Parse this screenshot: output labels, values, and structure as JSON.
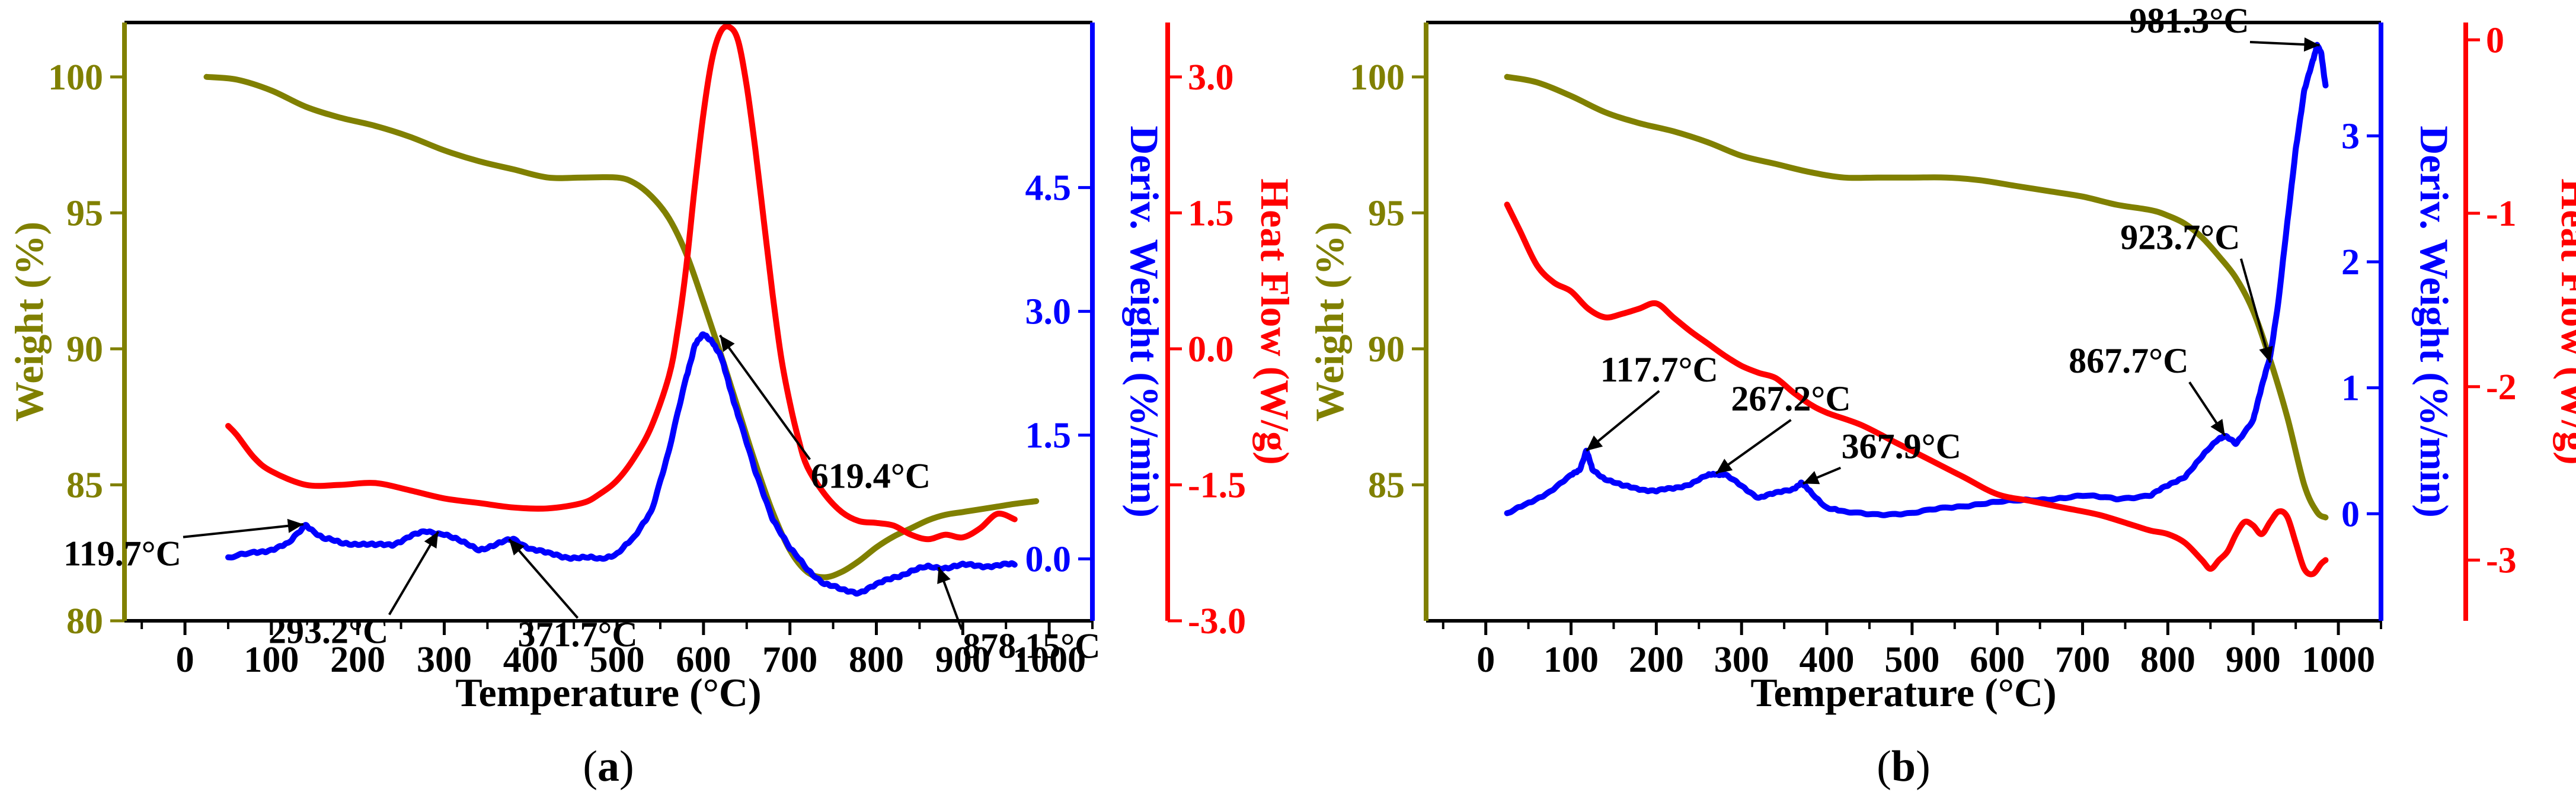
{
  "colors": {
    "weight": "#808000",
    "deriv": "#0000ff",
    "heat": "#ff0000",
    "axis": "#000000"
  },
  "chart_data": [
    {
      "type": "line",
      "caption": {
        "pre": "(",
        "letter": "a",
        "post": ")"
      },
      "xlabel": "Temperature (°C)",
      "xlim": [
        -70,
        1050
      ],
      "xticks": [
        0,
        100,
        200,
        300,
        400,
        500,
        600,
        700,
        800,
        900,
        1000
      ],
      "axes": {
        "weight": {
          "label": "Weight (%)",
          "lim": [
            80,
            102
          ],
          "ticks": [
            80,
            85,
            90,
            95,
            100
          ],
          "tick_labels": [
            "80",
            "85",
            "90",
            "95",
            "100"
          ]
        },
        "deriv": {
          "label": "Deriv. Weight (%/min)",
          "lim": [
            -0.75,
            6.5
          ],
          "ticks": [
            0,
            1.5,
            3,
            4.5
          ],
          "tick_labels": [
            "0.0",
            "1.5",
            "3.0",
            "4.5"
          ]
        },
        "heat": {
          "label": "Heat Flow (W/g)",
          "lim": [
            -3,
            3.6
          ],
          "ticks": [
            -3,
            -1.5,
            0,
            1.5,
            3
          ],
          "tick_labels": [
            "-3.0",
            "-1.5",
            "0.0",
            "1.5",
            "3.0"
          ]
        }
      },
      "series": [
        {
          "name": "Weight",
          "axis": "weight",
          "color": "#808000",
          "x": [
            25,
            60,
            100,
            140,
            180,
            220,
            260,
            300,
            340,
            380,
            420,
            460,
            500,
            520,
            540,
            560,
            580,
            600,
            620,
            640,
            660,
            680,
            700,
            720,
            740,
            760,
            780,
            800,
            820,
            840,
            860,
            880,
            900,
            920,
            940,
            960,
            985
          ],
          "y": [
            100,
            99.9,
            99.5,
            98.9,
            98.5,
            98.2,
            97.8,
            97.3,
            96.9,
            96.6,
            96.3,
            96.3,
            96.3,
            96.1,
            95.6,
            94.8,
            93.5,
            91.7,
            89.8,
            87.8,
            85.8,
            84,
            82.6,
            81.8,
            81.6,
            81.8,
            82.2,
            82.7,
            83.1,
            83.4,
            83.7,
            83.9,
            84,
            84.1,
            84.2,
            84.3,
            84.4
          ]
        },
        {
          "name": "Deriv. Weight",
          "axis": "deriv",
          "color": "#0000ff",
          "noise": 0.025,
          "x": [
            50,
            80,
            100,
            120,
            140,
            160,
            180,
            200,
            220,
            240,
            260,
            280,
            300,
            320,
            340,
            360,
            380,
            400,
            420,
            440,
            460,
            480,
            500,
            520,
            540,
            560,
            580,
            590,
            600,
            610,
            620,
            630,
            640,
            660,
            680,
            700,
            720,
            740,
            760,
            780,
            800,
            820,
            840,
            860,
            880,
            900,
            920,
            940,
            960
          ],
          "y": [
            0.01,
            0.07,
            0.12,
            0.18,
            0.42,
            0.25,
            0.19,
            0.19,
            0.16,
            0.18,
            0.27,
            0.33,
            0.31,
            0.2,
            0.12,
            0.17,
            0.24,
            0.13,
            0.06,
            0.03,
            0.01,
            0,
            0.07,
            0.25,
            0.6,
            1.3,
            2.2,
            2.6,
            2.71,
            2.65,
            2.45,
            2.1,
            1.75,
            1.05,
            0.5,
            0.12,
            -0.12,
            -0.3,
            -0.38,
            -0.4,
            -0.32,
            -0.22,
            -0.15,
            -0.1,
            -0.1,
            -0.08,
            -0.08,
            -0.08,
            -0.07
          ]
        },
        {
          "name": "Heat Flow",
          "axis": "heat",
          "color": "#ff0000",
          "x": [
            50,
            60,
            80,
            100,
            140,
            180,
            220,
            260,
            300,
            340,
            380,
            420,
            460,
            480,
            500,
            520,
            540,
            560,
            570,
            580,
            590,
            600,
            610,
            620,
            630,
            640,
            650,
            660,
            670,
            680,
            690,
            700,
            710,
            720,
            740,
            760,
            780,
            800,
            820,
            840,
            860,
            880,
            900,
            920,
            940,
            960
          ],
          "y": [
            -0.85,
            -0.95,
            -1.2,
            -1.35,
            -1.5,
            -1.5,
            -1.48,
            -1.56,
            -1.65,
            -1.7,
            -1.75,
            -1.76,
            -1.7,
            -1.6,
            -1.45,
            -1.2,
            -0.85,
            -0.3,
            0.2,
            0.9,
            1.8,
            2.6,
            3.2,
            3.5,
            3.55,
            3.4,
            2.9,
            2.2,
            1.4,
            0.6,
            -0.1,
            -0.6,
            -1,
            -1.3,
            -1.6,
            -1.8,
            -1.9,
            -1.92,
            -1.95,
            -2.05,
            -2.1,
            -2.05,
            -2.08,
            -1.98,
            -1.82,
            -1.88
          ]
        }
      ],
      "annotations": [
        {
          "text": "119.7°C",
          "x": 137,
          "axis": "deriv",
          "y": 0.42,
          "dx": -2.7,
          "dy": -0.5
        },
        {
          "text": "293.2°C",
          "x": 293,
          "axis": "deriv",
          "y": 0.33,
          "dx": -1.05,
          "dy": -1.35
        },
        {
          "text": "371.7°C",
          "x": 375,
          "axis": "deriv",
          "y": 0.24,
          "dx": 0.1,
          "dy": -1.3
        },
        {
          "text": "619.4°C",
          "x": 619,
          "axis": "deriv",
          "y": 2.71,
          "dx": 2.0,
          "dy": -1.85
        },
        {
          "text": "878.15°C",
          "x": 872,
          "axis": "deriv",
          "y": -0.1,
          "dx": 0.45,
          "dy": -1.1
        }
      ]
    },
    {
      "type": "line",
      "caption": {
        "pre": "(",
        "letter": "b",
        "post": ")"
      },
      "xlabel": "Temperature (°C)",
      "xlim": [
        -70,
        1050
      ],
      "xticks": [
        0,
        100,
        200,
        300,
        400,
        500,
        600,
        700,
        800,
        900,
        1000
      ],
      "axes": {
        "weight": {
          "label": "Weight (%)",
          "lim": [
            80,
            102
          ],
          "ticks": [
            85,
            90,
            95,
            100
          ],
          "tick_labels": [
            "85",
            "90",
            "95",
            "100"
          ]
        },
        "deriv": {
          "label": "Deriv. Weight (%/min)",
          "lim": [
            -0.85,
            3.9
          ],
          "ticks": [
            0,
            1,
            2,
            3
          ],
          "tick_labels": [
            "0",
            "1",
            "2",
            "3"
          ]
        },
        "heat": {
          "label": "Heat Flow (W/g)",
          "lim": [
            -3.35,
            0.1
          ],
          "ticks": [
            -3,
            -2,
            -1,
            0
          ],
          "tick_labels": [
            "-3",
            "-2",
            "-1",
            "0"
          ]
        }
      },
      "series": [
        {
          "name": "Weight",
          "axis": "weight",
          "color": "#808000",
          "x": [
            25,
            60,
            100,
            140,
            180,
            220,
            260,
            300,
            340,
            380,
            420,
            460,
            500,
            540,
            580,
            620,
            660,
            700,
            740,
            780,
            800,
            820,
            840,
            860,
            880,
            900,
            920,
            940,
            960,
            975,
            985
          ],
          "y": [
            100,
            99.8,
            99.3,
            98.7,
            98.3,
            98,
            97.6,
            97.1,
            96.8,
            96.5,
            96.3,
            96.3,
            96.3,
            96.3,
            96.2,
            96,
            95.8,
            95.6,
            95.3,
            95.1,
            94.9,
            94.6,
            94.1,
            93.4,
            92.6,
            91.4,
            89.6,
            87.5,
            85,
            84,
            83.8
          ]
        },
        {
          "name": "Deriv. Weight",
          "axis": "deriv",
          "color": "#0000ff",
          "noise": 0.012,
          "x": [
            25,
            50,
            75,
            100,
            110,
            118,
            125,
            140,
            160,
            180,
            200,
            220,
            240,
            260,
            270,
            280,
            300,
            320,
            340,
            360,
            370,
            380,
            400,
            420,
            460,
            500,
            540,
            580,
            620,
            660,
            700,
            740,
            780,
            800,
            820,
            840,
            860,
            867,
            880,
            900,
            910,
            920,
            930,
            940,
            950,
            960,
            970,
            975,
            980,
            985
          ],
          "y": [
            0,
            0.08,
            0.18,
            0.3,
            0.35,
            0.5,
            0.35,
            0.28,
            0.22,
            0.2,
            0.18,
            0.2,
            0.24,
            0.3,
            0.32,
            0.31,
            0.22,
            0.13,
            0.16,
            0.2,
            0.24,
            0.18,
            0.05,
            0.01,
            0,
            0,
            0.05,
            0.08,
            0.1,
            0.12,
            0.14,
            0.12,
            0.15,
            0.22,
            0.3,
            0.45,
            0.6,
            0.62,
            0.55,
            0.75,
            1.0,
            1.25,
            1.7,
            2.3,
            2.9,
            3.35,
            3.6,
            3.72,
            3.65,
            3.4
          ]
        },
        {
          "name": "Heat Flow",
          "axis": "heat",
          "color": "#ff0000",
          "x": [
            25,
            40,
            60,
            80,
            100,
            120,
            140,
            160,
            180,
            200,
            220,
            240,
            260,
            280,
            300,
            320,
            340,
            360,
            380,
            400,
            440,
            480,
            520,
            560,
            600,
            640,
            680,
            720,
            760,
            780,
            800,
            820,
            840,
            850,
            860,
            870,
            880,
            890,
            900,
            910,
            920,
            930,
            940,
            950,
            960,
            970,
            980,
            985
          ],
          "y": [
            -0.95,
            -1.1,
            -1.3,
            -1.4,
            -1.45,
            -1.55,
            -1.6,
            -1.58,
            -1.55,
            -1.52,
            -1.6,
            -1.68,
            -1.75,
            -1.82,
            -1.88,
            -1.92,
            -1.95,
            -2.03,
            -2.1,
            -2.15,
            -2.22,
            -2.32,
            -2.42,
            -2.52,
            -2.62,
            -2.66,
            -2.7,
            -2.74,
            -2.8,
            -2.83,
            -2.85,
            -2.9,
            -3.0,
            -3.05,
            -3.0,
            -2.95,
            -2.85,
            -2.78,
            -2.8,
            -2.85,
            -2.78,
            -2.72,
            -2.75,
            -2.9,
            -3.05,
            -3.08,
            -3.02,
            -3.0
          ]
        }
      ],
      "annotations": [
        {
          "text": "117.7°C",
          "x": 118,
          "axis": "deriv",
          "y": 0.5,
          "dx": 0.2,
          "dy": 0.55
        },
        {
          "text": "267.2°C",
          "x": 270,
          "axis": "deriv",
          "y": 0.32,
          "dx": 0.25,
          "dy": 0.5
        },
        {
          "text": "367.9°C",
          "x": 372,
          "axis": "deriv",
          "y": 0.24,
          "dx": 0.8,
          "dy": 0.2
        },
        {
          "text": "867.7°C",
          "x": 867,
          "axis": "deriv",
          "y": 0.62,
          "dx": -0.75,
          "dy": 0.5
        },
        {
          "text": "923.7°C",
          "x": 920,
          "axis": "deriv",
          "y": 1.2,
          "dx": -0.6,
          "dy": 0.9
        },
        {
          "text": "981.3°C",
          "x": 978,
          "axis": "deriv",
          "y": 3.72,
          "dx": -1.55,
          "dy": 0.1
        }
      ]
    }
  ]
}
